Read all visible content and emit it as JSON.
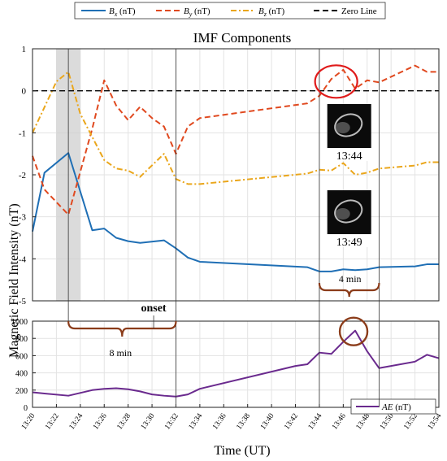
{
  "chart_data": [
    {
      "type": "line",
      "title": "IMF Components",
      "ylabel": "Magnetic Field Intensity (nT)",
      "xlim": [
        "13:20",
        "13:54"
      ],
      "ylim": [
        -5,
        1
      ],
      "yticks": [
        1,
        0,
        -1,
        -2,
        -3,
        -4,
        -5
      ],
      "grid": true,
      "legend_position": "top",
      "series": [
        {
          "name": "B_x (nT)",
          "legend_base": "B",
          "legend_sub": "x",
          "legend_unit": " (nT)",
          "color": "#1f6fb5",
          "style": "solid",
          "x": [
            "13:20",
            "13:21",
            "13:23",
            "13:25",
            "13:26",
            "13:27",
            "13:28",
            "13:29",
            "13:31",
            "13:32",
            "13:33",
            "13:34",
            "13:43",
            "13:44",
            "13:45",
            "13:46",
            "13:47",
            "13:48",
            "13:49",
            "13:52",
            "13:53",
            "13:54"
          ],
          "y": [
            -3.35,
            -1.95,
            -1.48,
            -3.32,
            -3.28,
            -3.5,
            -3.58,
            -3.62,
            -3.56,
            -3.75,
            -3.97,
            -4.07,
            -4.2,
            -4.3,
            -4.3,
            -4.25,
            -4.27,
            -4.25,
            -4.2,
            -4.18,
            -4.13,
            -4.13
          ]
        },
        {
          "name": "B_y (nT)",
          "legend_base": "B",
          "legend_sub": "y",
          "legend_unit": " (nT)",
          "color": "#e0491f",
          "style": "dashed",
          "x": [
            "13:20",
            "13:21",
            "13:23",
            "13:25",
            "13:26",
            "13:27",
            "13:28",
            "13:29",
            "13:30",
            "13:31",
            "13:32",
            "13:33",
            "13:34",
            "13:43",
            "13:44",
            "13:45",
            "13:46",
            "13:47",
            "13:48",
            "13:49",
            "13:52",
            "13:53",
            "13:54"
          ],
          "y": [
            -1.55,
            -2.35,
            -2.95,
            -0.9,
            0.25,
            -0.35,
            -0.7,
            -0.38,
            -0.65,
            -0.85,
            -1.5,
            -0.85,
            -0.65,
            -0.3,
            -0.12,
            0.28,
            0.5,
            0.05,
            0.25,
            0.2,
            0.6,
            0.45,
            0.45
          ]
        },
        {
          "name": "B_z (nT)",
          "legend_base": "B",
          "legend_sub": "z",
          "legend_unit": " (nT)",
          "color": "#eaa61b",
          "style": "dashdot",
          "x": [
            "13:20",
            "13:22",
            "13:23",
            "13:24",
            "13:26",
            "13:27",
            "13:28",
            "13:29",
            "13:31",
            "13:32",
            "13:33",
            "13:34",
            "13:43",
            "13:44",
            "13:45",
            "13:46",
            "13:47",
            "13:48",
            "13:49",
            "13:52",
            "13:53",
            "13:54"
          ],
          "y": [
            -1.0,
            0.22,
            0.45,
            -0.55,
            -1.65,
            -1.85,
            -1.9,
            -2.05,
            -1.5,
            -2.1,
            -2.22,
            -2.22,
            -1.97,
            -1.88,
            -1.9,
            -1.72,
            -2.0,
            -1.95,
            -1.85,
            -1.78,
            -1.7,
            -1.7
          ]
        },
        {
          "name": "Zero Line",
          "color": "#000000",
          "style": "dashed",
          "x": [
            "13:20",
            "13:54"
          ],
          "y": [
            0,
            0
          ]
        }
      ],
      "annotations": {
        "image1_time": "13:44",
        "image2_time": "13:49",
        "interval_label": "4 min",
        "shaded_span": [
          "13:22",
          "13:24"
        ]
      }
    },
    {
      "type": "line",
      "xlabel": "Time (UT)",
      "ylabel": "Magnetic Field Intensity (nT)",
      "xlim": [
        "13:20",
        "13:54"
      ],
      "ylim": [
        0,
        1000
      ],
      "yticks": [
        0,
        200,
        400,
        600,
        800,
        1000
      ],
      "xticks": [
        "13:20",
        "13:22",
        "13:24",
        "13:26",
        "13:28",
        "13:30",
        "13:32",
        "13:34",
        "13:36",
        "13:38",
        "13:40",
        "13:42",
        "13:44",
        "13:46",
        "13:48",
        "13:50",
        "13:52",
        "13:54"
      ],
      "grid": true,
      "legend_position": "bottom-right",
      "series": [
        {
          "name": "AE (nT)",
          "legend_base": "AE",
          "legend_unit": " (nT)",
          "color": "#6a2a8e",
          "style": "solid",
          "x": [
            "13:20",
            "13:21",
            "13:23",
            "13:25",
            "13:26",
            "13:27",
            "13:28",
            "13:29",
            "13:30",
            "13:31",
            "13:32",
            "13:33",
            "13:34",
            "13:42",
            "13:43",
            "13:44",
            "13:45",
            "13:46",
            "13:47",
            "13:48",
            "13:49",
            "13:52",
            "13:53",
            "13:54"
          ],
          "y": [
            175,
            160,
            135,
            200,
            215,
            222,
            210,
            185,
            150,
            135,
            125,
            150,
            215,
            480,
            500,
            635,
            620,
            760,
            890,
            650,
            455,
            530,
            610,
            570
          ]
        }
      ],
      "annotations": {
        "onset_label": "onset",
        "interval_label": "8 min"
      }
    }
  ]
}
